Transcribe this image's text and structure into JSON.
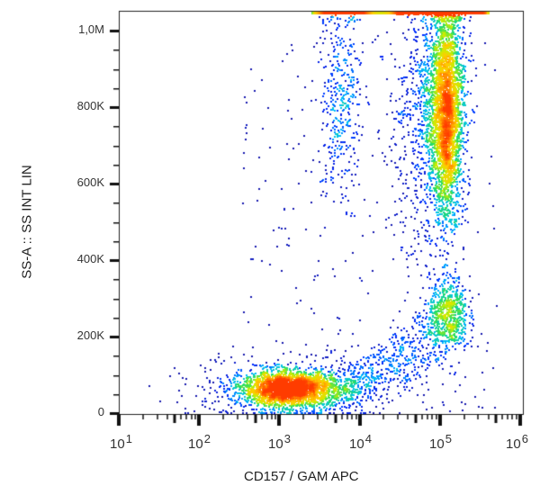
{
  "chart_data": {
    "type": "scatter",
    "subtype": "flow-cytometry-density-dot-plot",
    "title": "",
    "xlabel": "CD157 / GAM  APC",
    "ylabel": "SS-A :: SS INT LIN",
    "x_scale": "log",
    "y_scale": "linear",
    "xlim": [
      10,
      1000000
    ],
    "ylim": [
      0,
      1050000
    ],
    "x_ticks": [
      {
        "exp": 1,
        "label_base": "10",
        "label_exp": "1"
      },
      {
        "exp": 2,
        "label_base": "10",
        "label_exp": "2"
      },
      {
        "exp": 3,
        "label_base": "10",
        "label_exp": "3"
      },
      {
        "exp": 4,
        "label_base": "10",
        "label_exp": "4"
      },
      {
        "exp": 5,
        "label_base": "10",
        "label_exp": "5"
      },
      {
        "exp": 6,
        "label_base": "10",
        "label_exp": "6"
      }
    ],
    "y_ticks": [
      {
        "value": 0,
        "label": "0"
      },
      {
        "value": 200000,
        "label": "200K"
      },
      {
        "value": 400000,
        "label": "400K"
      },
      {
        "value": 600000,
        "label": "600K"
      },
      {
        "value": 800000,
        "label": "800K"
      },
      {
        "value": 1000000,
        "label": "1,0M"
      }
    ],
    "y_minor_step": 50000,
    "grid": false,
    "legend": "none",
    "color_scale": [
      "#1a1aa8",
      "#0033ff",
      "#00bfff",
      "#22dd66",
      "#ccee00",
      "#ffcc00",
      "#ff4400"
    ],
    "populations": [
      {
        "name": "main-negative-cluster",
        "x_log_center": 3.1,
        "x_log_sd": 0.28,
        "y_center": 65000,
        "y_sd": 22000,
        "count": 2600,
        "density": "high"
      },
      {
        "name": "diagonal-trail",
        "x_log_from": 3.4,
        "x_log_to": 5.0,
        "y_from": 60000,
        "y_to": 230000,
        "spread_y": 45000,
        "count": 700,
        "density": "low"
      },
      {
        "name": "positive-low-ss",
        "x_log_center": 5.1,
        "x_log_sd": 0.12,
        "y_center": 260000,
        "y_sd": 50000,
        "count": 650,
        "density": "medium"
      },
      {
        "name": "positive-high-ss-column",
        "x_log_center": 5.05,
        "x_log_sd": 0.13,
        "y_center": 800000,
        "y_sd": 140000,
        "count": 2200,
        "density": "medium-high"
      },
      {
        "name": "left-high-ss-column",
        "x_log_center": 3.75,
        "x_log_sd": 0.13,
        "y_center": 820000,
        "y_sd": 140000,
        "count": 380,
        "density": "low"
      },
      {
        "name": "saturation-band-top",
        "y_value": 1050000,
        "x_log_from": 3.4,
        "x_log_to": 5.6,
        "density": "high"
      },
      {
        "name": "scattered-background",
        "count": 250,
        "density": "sparse"
      }
    ]
  },
  "axes": {
    "x_title": "CD157 / GAM  APC",
    "y_title": "SS-A :: SS INT LIN"
  }
}
